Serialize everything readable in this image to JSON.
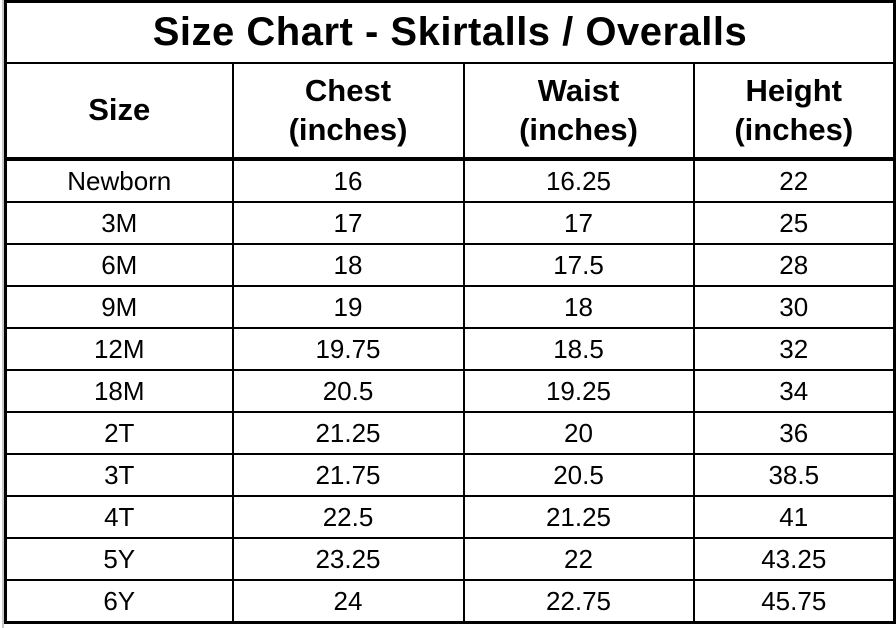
{
  "title": "Size Chart - Skirtalls / Overalls",
  "table": {
    "headers": [
      {
        "name": "Size",
        "unit": ""
      },
      {
        "name": "Chest",
        "unit": "(inches)"
      },
      {
        "name": "Waist",
        "unit": "(inches)"
      },
      {
        "name": "Height",
        "unit": "(inches)"
      }
    ],
    "rows": [
      [
        "Newborn",
        "16",
        "16.25",
        "22"
      ],
      [
        "3M",
        "17",
        "17",
        "25"
      ],
      [
        "6M",
        "18",
        "17.5",
        "28"
      ],
      [
        "9M",
        "19",
        "18",
        "30"
      ],
      [
        "12M",
        "19.75",
        "18.5",
        "32"
      ],
      [
        "18M",
        "20.5",
        "19.25",
        "34"
      ],
      [
        "2T",
        "21.25",
        "20",
        "36"
      ],
      [
        "3T",
        "21.75",
        "20.5",
        "38.5"
      ],
      [
        "4T",
        "22.5",
        "21.25",
        "41"
      ],
      [
        "5Y",
        "23.25",
        "22",
        "43.25"
      ],
      [
        "6Y",
        "24",
        "22.75",
        "45.75"
      ]
    ]
  },
  "colors": {
    "border": "#000000",
    "text": "#000000",
    "background": "#ffffff",
    "edge_artifact": "#c9c9c9"
  },
  "chart_data": {
    "type": "table",
    "title": "Size Chart - Skirtalls / Overalls",
    "columns": [
      "Size",
      "Chest (inches)",
      "Waist (inches)",
      "Height (inches)"
    ],
    "rows": [
      [
        "Newborn",
        16,
        16.25,
        22
      ],
      [
        "3M",
        17,
        17,
        25
      ],
      [
        "6M",
        18,
        17.5,
        28
      ],
      [
        "9M",
        19,
        18,
        30
      ],
      [
        "12M",
        19.75,
        18.5,
        32
      ],
      [
        "18M",
        20.5,
        19.25,
        34
      ],
      [
        "2T",
        21.25,
        20,
        36
      ],
      [
        "3T",
        21.75,
        20.5,
        38.5
      ],
      [
        "4T",
        22.5,
        21.25,
        41
      ],
      [
        "5Y",
        23.25,
        22,
        43.25
      ],
      [
        "6Y",
        24,
        22.75,
        45.75
      ]
    ]
  }
}
